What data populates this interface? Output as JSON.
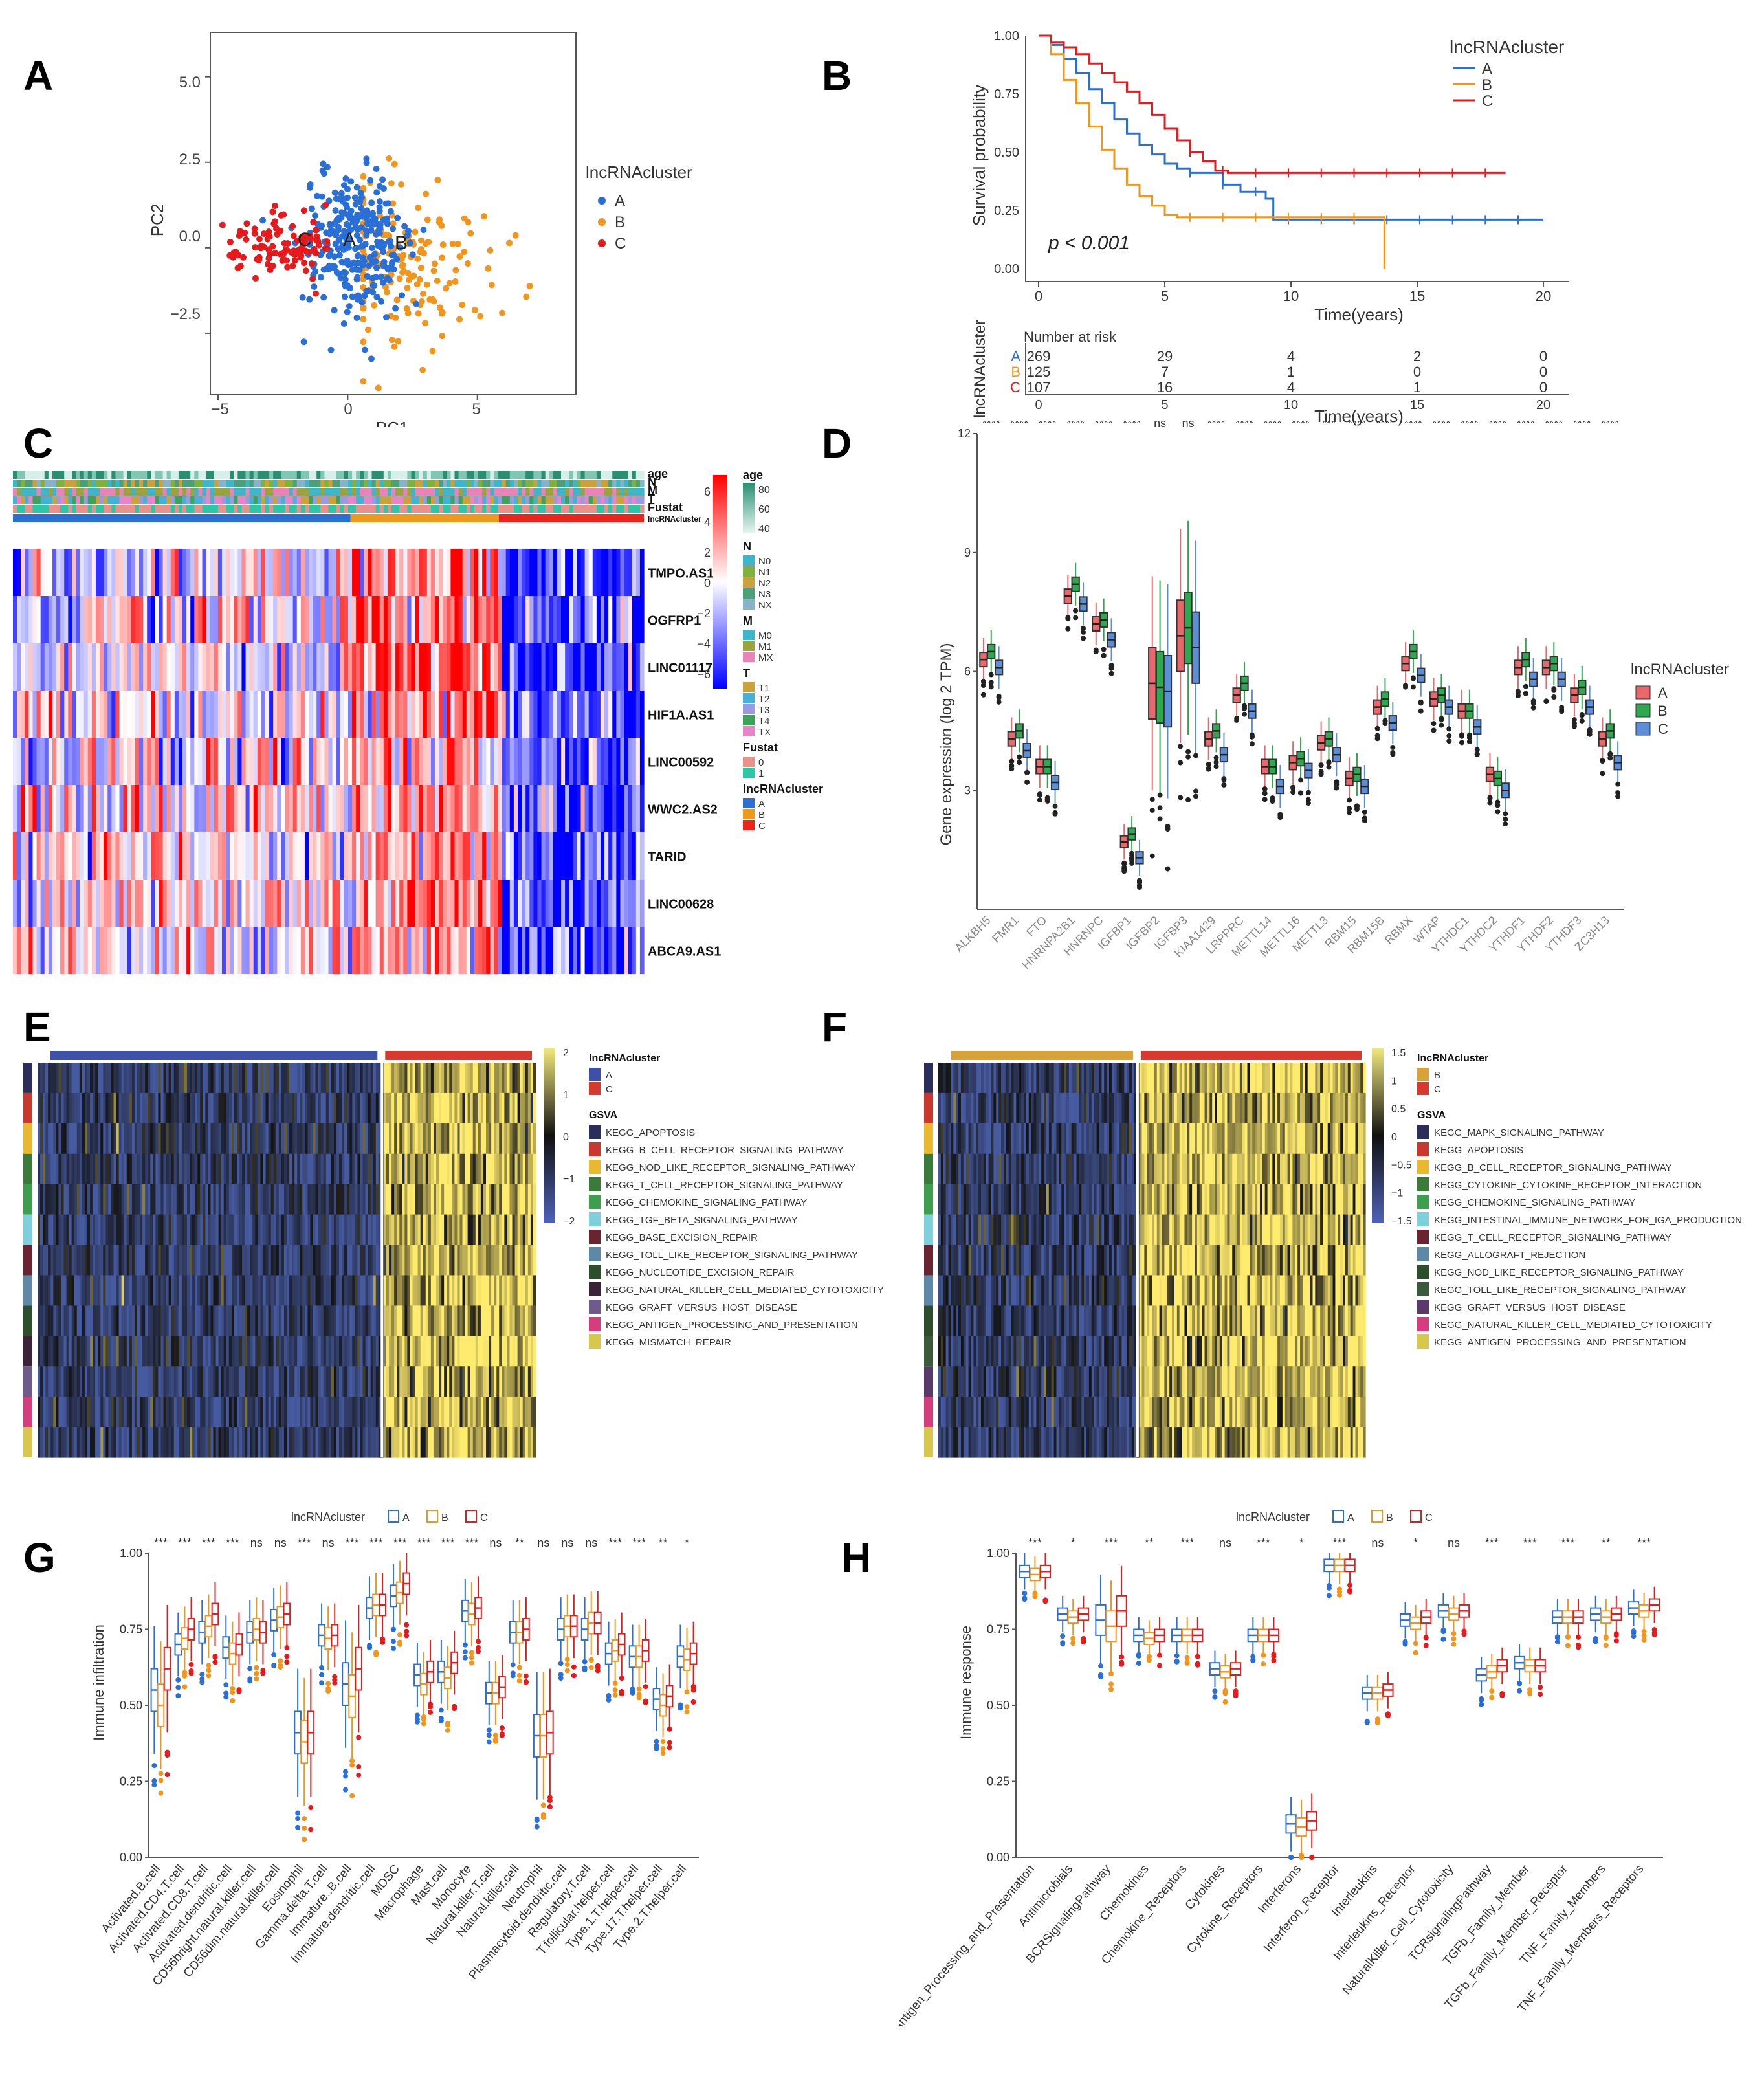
{
  "panels": {
    "A": {
      "letter": "A",
      "legend_title": "lncRNAcluster",
      "clusters": [
        "A",
        "B",
        "C"
      ],
      "colors": {
        "A": "#2a6fd6",
        "B": "#f0961e",
        "C": "#e41a1c"
      },
      "xlabel": "PC1",
      "ylabel": "PC2",
      "xticks": [
        "−5",
        "0",
        "5"
      ],
      "yticks": [
        "5.0",
        "2.5",
        "0.0",
        "−2.5"
      ]
    },
    "B": {
      "letter": "B",
      "legend_title": "lncRNAcluster",
      "ylabel": "Survival probability",
      "xlabel": "Time(years)",
      "pvalue": "p < 0.001",
      "yticks": [
        "1.00",
        "0.75",
        "0.50",
        "0.25",
        "0.00"
      ],
      "xticks": [
        "0",
        "5",
        "10",
        "15",
        "20"
      ],
      "risk_title": "Number at risk",
      "risk_ylabel": "lncRNAcluster",
      "risk_rows": [
        {
          "group": "A",
          "values": [
            "269",
            "29",
            "4",
            "2",
            "0"
          ]
        },
        {
          "group": "B",
          "values": [
            "125",
            "7",
            "1",
            "0",
            "0"
          ]
        },
        {
          "group": "C",
          "values": [
            "107",
            "16",
            "4",
            "1",
            "0"
          ]
        }
      ]
    },
    "C": {
      "letter": "C",
      "annotation_rows": [
        "age",
        "N",
        "M",
        "T",
        "Fustat",
        "lncRNAcluster"
      ],
      "genes": [
        "TMPO.AS1",
        "OGFRP1",
        "LINC01117",
        "HIF1A.AS1",
        "LINC00592",
        "WWC2.AS2",
        "TARID",
        "LINC00628",
        "ABCA9.AS1"
      ],
      "scale_ticks": [
        "6",
        "4",
        "2",
        "0",
        "−2",
        "−4",
        "−6"
      ],
      "legend": {
        "age": {
          "title": "age",
          "ticks": [
            "80",
            "60",
            "40"
          ]
        },
        "N": {
          "title": "N",
          "items": [
            "N0",
            "N1",
            "N2",
            "N3",
            "NX"
          ]
        },
        "M": {
          "title": "M",
          "items": [
            "M0",
            "M1",
            "MX"
          ]
        },
        "T": {
          "title": "T",
          "items": [
            "T1",
            "T2",
            "T3",
            "T4",
            "TX"
          ]
        },
        "Fustat": {
          "title": "Fustat",
          "items": [
            "0",
            "1"
          ]
        },
        "cluster": {
          "title": "lncRNAcluster",
          "items": [
            "A",
            "B",
            "C"
          ]
        }
      }
    },
    "D": {
      "letter": "D",
      "ylabel": "Gene expression (log 2 TPM)",
      "yticks": [
        "12",
        "9",
        "6",
        "3"
      ],
      "legend_title": "lncRNAcluster",
      "genes": [
        "ALKBH5",
        "FMR1",
        "FTO",
        "HNRNPA2B1",
        "HNRNPC",
        "IGFBP1",
        "IGFBP2",
        "IGFBP3",
        "KIAA1429",
        "LRPPRC",
        "METTL14",
        "METTL16",
        "METTL3",
        "RBM15",
        "RBM15B",
        "RBMX",
        "WTAP",
        "YTHDC1",
        "YTHDC2",
        "YTHDF1",
        "YTHDF2",
        "YTHDF3",
        "ZC3H13"
      ],
      "signif": [
        "****",
        "****",
        "****",
        "****",
        "****",
        "****",
        "ns",
        "ns",
        "****",
        "****",
        "****",
        "****",
        "***",
        "****",
        "****",
        "****",
        "****",
        "****",
        "****",
        "****",
        "****",
        "****",
        "****"
      ],
      "colors": {
        "A": "#e8696b",
        "B": "#2fa84f",
        "C": "#5b8fd8"
      }
    },
    "E": {
      "letter": "E",
      "legend_title": "lncRNAcluster",
      "clusters": [
        "A",
        "C"
      ],
      "gsva_title": "GSVA",
      "scale_ticks": [
        "2",
        "1",
        "0",
        "−1",
        "−2"
      ],
      "pathways": [
        "KEGG_APOPTOSIS",
        "KEGG_B_CELL_RECEPTOR_SIGNALING_PATHWAY",
        "KEGG_NOD_LIKE_RECEPTOR_SIGNALING_PATHWAY",
        "KEGG_T_CELL_RECEPTOR_SIGNALING_PATHWAY",
        "KEGG_CHEMOKINE_SIGNALING_PATHWAY",
        "KEGG_TGF_BETA_SIGNALING_PATHWAY",
        "KEGG_BASE_EXCISION_REPAIR",
        "KEGG_TOLL_LIKE_RECEPTOR_SIGNALING_PATHWAY",
        "KEGG_NUCLEOTIDE_EXCISION_REPAIR",
        "KEGG_NATURAL_KILLER_CELL_MEDIATED_CYTOTOXICITY",
        "KEGG_GRAFT_VERSUS_HOST_DISEASE",
        "KEGG_ANTIGEN_PROCESSING_AND_PRESENTATION",
        "KEGG_MISMATCH_REPAIR"
      ],
      "pathway_colors": [
        "#2b2d5a",
        "#c8382f",
        "#e8b92f",
        "#3a7a3a",
        "#3d9e4f",
        "#7fd0dd",
        "#6a2331",
        "#5f87a8",
        "#2a4f2a",
        "#3a2238",
        "#6f5a8c",
        "#d63d7f",
        "#d9c64d"
      ]
    },
    "F": {
      "letter": "F",
      "legend_title": "lncRNAcluster",
      "clusters": [
        "B",
        "C"
      ],
      "gsva_title": "GSVA",
      "scale_ticks": [
        "1.5",
        "1",
        "0.5",
        "0",
        "−0.5",
        "−1",
        "−1.5"
      ],
      "pathways": [
        "KEGG_MAPK_SIGNALING_PATHWAY",
        "KEGG_APOPTOSIS",
        "KEGG_B_CELL_RECEPTOR_SIGNALING_PATHWAY",
        "KEGG_CYTOKINE_CYTOKINE_RECEPTOR_INTERACTION",
        "KEGG_CHEMOKINE_SIGNALING_PATHWAY",
        "KEGG_INTESTINAL_IMMUNE_NETWORK_FOR_IGA_PRODUCTION",
        "KEGG_T_CELL_RECEPTOR_SIGNALING_PATHWAY",
        "KEGG_ALLOGRAFT_REJECTION",
        "KEGG_NOD_LIKE_RECEPTOR_SIGNALING_PATHWAY",
        "KEGG_TOLL_LIKE_RECEPTOR_SIGNALING_PATHWAY",
        "KEGG_GRAFT_VERSUS_HOST_DISEASE",
        "KEGG_NATURAL_KILLER_CELL_MEDIATED_CYTOTOXICITY",
        "KEGG_ANTIGEN_PROCESSING_AND_PRESENTATION"
      ],
      "pathway_colors": [
        "#2b2d5a",
        "#c8382f",
        "#e8b92f",
        "#3a7a3a",
        "#3d9e4f",
        "#7fd0dd",
        "#6a2331",
        "#5f87a8",
        "#2a4f2a",
        "#3a5a3a",
        "#5a3a6a",
        "#d63d7f",
        "#d9c64d"
      ]
    },
    "G": {
      "letter": "G",
      "legend_title": "lncRNAcluster",
      "ylabel": "Immune infiltration",
      "yticks": [
        "1.00",
        "0.75",
        "0.50",
        "0.25",
        "0.00"
      ],
      "cells": [
        "Activated.B.cell",
        "Activated.CD4.T.cell",
        "Activated.CD8.T.cell",
        "Activated.dendritic.cell",
        "CD56bright.natural.killer.cell",
        "CD56dim.natural.killer.cell",
        "Eosinophil",
        "Gamma.delta.T.cell",
        "Immature..B.cell",
        "Immature.dendritic.cell",
        "MDSC",
        "Macrophage",
        "Mast.cell",
        "Monocyte",
        "Natural.killer.T.cell",
        "Natural.killer.cell",
        "Neutrophil",
        "Plasmacytoid.dendritic.cell",
        "Regulatory.T.cell",
        "T.follicular.helper.cell",
        "Type.1.T.helper.cell",
        "Type.17.T.helper.cell",
        "Type.2.T.helper.cell"
      ],
      "signif": [
        "***",
        "***",
        "***",
        "***",
        "ns",
        "ns",
        "***",
        "ns",
        "***",
        "***",
        "***",
        "***",
        "***",
        "***",
        "ns",
        "**",
        "ns",
        "ns",
        "ns",
        "***",
        "***",
        "**",
        "*"
      ],
      "colors": {
        "A": "#2a6fd6",
        "B": "#f0961e",
        "C": "#e41a1c"
      }
    },
    "H": {
      "letter": "H",
      "legend_title": "lncRNAcluster",
      "ylabel": "Immune response",
      "yticks": [
        "1.00",
        "0.75",
        "0.50",
        "0.25",
        "0.00"
      ],
      "categories": [
        "Antigen_Processing_and_Presentation",
        "Antimicrobials",
        "BCRSignalingPathway",
        "Chemokines",
        "Chemokine_Receptors",
        "Cytokines",
        "Cytokine_Receptors",
        "Interferons",
        "Interferon_Receptor",
        "Interleukins",
        "Interleukins_Receptor",
        "NaturalKiller_Cell_Cytotoxicity",
        "TCRsignalingPathway",
        "TGFb_Family_Member",
        "TGFb_Family_Member_Receptor",
        "TNF_Family_Members",
        "TNF_Family_Members_Receptors"
      ],
      "signif": [
        "***",
        "*",
        "***",
        "**",
        "***",
        "ns",
        "***",
        "*",
        "***",
        "ns",
        "*",
        "ns",
        "***",
        "***",
        "***",
        "**",
        "***"
      ],
      "colors": {
        "A": "#2a6fd6",
        "B": "#f0961e",
        "C": "#e41a1c"
      }
    }
  },
  "chart_data": [
    {
      "type": "scatter",
      "panel": "A",
      "xlabel": "PC1",
      "ylabel": "PC2",
      "xlim": [
        -5.3,
        8.8
      ],
      "ylim": [
        -4.3,
        6.3
      ],
      "series": [
        {
          "name": "A",
          "center": [
            0,
            0
          ]
        },
        {
          "name": "B",
          "center": [
            2.2,
            -0.2
          ]
        },
        {
          "name": "C",
          "center": [
            -2.8,
            0.1
          ]
        }
      ]
    },
    {
      "type": "line",
      "panel": "B",
      "xlabel": "Time(years)",
      "ylabel": "Survival probability",
      "xlim": [
        0,
        20
      ],
      "ylim": [
        0,
        1
      ],
      "series": [
        {
          "name": "A",
          "points": [
            [
              0,
              1
            ],
            [
              0.5,
              0.96
            ],
            [
              1,
              0.9
            ],
            [
              1.5,
              0.84
            ],
            [
              2,
              0.77
            ],
            [
              2.5,
              0.71
            ],
            [
              3,
              0.64
            ],
            [
              3.5,
              0.58
            ],
            [
              4,
              0.53
            ],
            [
              4.5,
              0.49
            ],
            [
              5,
              0.45
            ],
            [
              5.5,
              0.43
            ],
            [
              6,
              0.41
            ],
            [
              7,
              0.41
            ],
            [
              7.3,
              0.36
            ],
            [
              8,
              0.33
            ],
            [
              9,
              0.3
            ],
            [
              9.3,
              0.21
            ],
            [
              15,
              0.21
            ],
            [
              20,
              0.21
            ]
          ]
        },
        {
          "name": "B",
          "points": [
            [
              0,
              1
            ],
            [
              0.5,
              0.92
            ],
            [
              1,
              0.81
            ],
            [
              1.5,
              0.71
            ],
            [
              2,
              0.61
            ],
            [
              2.5,
              0.51
            ],
            [
              3,
              0.43
            ],
            [
              3.5,
              0.36
            ],
            [
              4,
              0.31
            ],
            [
              4.5,
              0.27
            ],
            [
              5,
              0.23
            ],
            [
              5.5,
              0.22
            ],
            [
              13.7,
              0.22
            ],
            [
              13.7,
              0
            ]
          ]
        },
        {
          "name": "C",
          "points": [
            [
              0,
              1
            ],
            [
              0.5,
              0.97
            ],
            [
              1,
              0.95
            ],
            [
              1.5,
              0.92
            ],
            [
              2,
              0.88
            ],
            [
              2.5,
              0.84
            ],
            [
              3,
              0.8
            ],
            [
              3.5,
              0.76
            ],
            [
              4,
              0.71
            ],
            [
              4.5,
              0.66
            ],
            [
              5,
              0.6
            ],
            [
              5.5,
              0.55
            ],
            [
              6,
              0.5
            ],
            [
              6.5,
              0.46
            ],
            [
              7,
              0.42
            ],
            [
              7.5,
              0.41
            ],
            [
              18.5,
              0.41
            ]
          ]
        }
      ]
    },
    {
      "type": "heatmap",
      "panel": "C",
      "rows": [
        "TMPO.AS1",
        "OGFRP1",
        "LINC01117",
        "HIF1A.AS1",
        "LINC00592",
        "WWC2.AS2",
        "TARID",
        "LINC00628",
        "ABCA9.AS1"
      ],
      "groups": [
        "A",
        "B",
        "C"
      ],
      "range": [
        -6,
        6
      ]
    },
    {
      "type": "bar",
      "panel": "D",
      "ylabel": "Gene expression (log 2 TPM)",
      "ylim": [
        0,
        12
      ],
      "categories": [
        "ALKBH5",
        "FMR1",
        "FTO",
        "HNRNPA2B1",
        "HNRNPC",
        "IGFBP1",
        "IGFBP2",
        "IGFBP3",
        "KIAA1429",
        "LRPPRC",
        "METTL14",
        "METTL16",
        "METTL3",
        "RBM15",
        "RBM15B",
        "RBMX",
        "WTAP",
        "YTHDC1",
        "YTHDC2",
        "YTHDF1",
        "YTHDF2",
        "YTHDF3",
        "ZC3H13"
      ],
      "series": [
        {
          "name": "A",
          "values": [
            6.3,
            4.3,
            3.6,
            7.9,
            7.2,
            1.7,
            5.7,
            6.9,
            4.3,
            5.4,
            3.6,
            3.7,
            4.2,
            3.3,
            5.1,
            6.2,
            5.3,
            5.0,
            3.4,
            6.1,
            6.1,
            5.4,
            4.3
          ]
        },
        {
          "name": "B",
          "values": [
            6.5,
            4.5,
            3.6,
            8.2,
            7.3,
            1.9,
            5.6,
            7.1,
            4.5,
            5.7,
            3.6,
            3.8,
            4.3,
            3.4,
            5.3,
            6.5,
            5.4,
            5.0,
            3.3,
            6.3,
            6.2,
            5.6,
            4.5
          ]
        },
        {
          "name": "C",
          "values": [
            6.1,
            4.0,
            3.2,
            7.7,
            6.8,
            1.3,
            5.5,
            6.6,
            3.9,
            5.0,
            3.1,
            3.5,
            3.9,
            3.1,
            4.7,
            5.9,
            5.1,
            4.6,
            3.0,
            5.8,
            5.8,
            5.1,
            3.7
          ]
        }
      ]
    },
    {
      "type": "heatmap",
      "panel": "E",
      "groups": [
        "A",
        "C"
      ],
      "range": [
        -2,
        2
      ]
    },
    {
      "type": "heatmap",
      "panel": "F",
      "groups": [
        "B",
        "C"
      ],
      "range": [
        -1.5,
        1.5
      ]
    },
    {
      "type": "bar",
      "panel": "G",
      "ylabel": "Immune infiltration",
      "ylim": [
        0,
        1
      ],
      "series": [
        {
          "name": "A",
          "values": [
            0.55,
            0.7,
            0.74,
            0.69,
            0.74,
            0.78,
            0.41,
            0.73,
            0.57,
            0.82,
            0.86,
            0.6,
            0.61,
            0.81,
            0.54,
            0.74,
            0.4,
            0.75,
            0.75,
            0.67,
            0.66,
            0.52,
            0.66
          ]
        },
        {
          "name": "B",
          "values": [
            0.5,
            0.72,
            0.76,
            0.67,
            0.75,
            0.79,
            0.38,
            0.72,
            0.53,
            0.83,
            0.87,
            0.57,
            0.59,
            0.8,
            0.54,
            0.74,
            0.4,
            0.76,
            0.77,
            0.68,
            0.66,
            0.5,
            0.65
          ]
        },
        {
          "name": "C",
          "values": [
            0.62,
            0.75,
            0.8,
            0.7,
            0.74,
            0.8,
            0.41,
            0.73,
            0.62,
            0.83,
            0.9,
            0.61,
            0.64,
            0.82,
            0.56,
            0.75,
            0.41,
            0.76,
            0.77,
            0.7,
            0.68,
            0.53,
            0.67
          ]
        }
      ]
    },
    {
      "type": "bar",
      "panel": "H",
      "ylabel": "Immune response",
      "ylim": [
        0,
        1
      ],
      "series": [
        {
          "name": "A",
          "values": [
            0.94,
            0.8,
            0.78,
            0.73,
            0.73,
            0.62,
            0.73,
            0.11,
            0.96,
            0.54,
            0.78,
            0.81,
            0.6,
            0.64,
            0.79,
            0.8,
            0.82
          ]
        },
        {
          "name": "B",
          "values": [
            0.93,
            0.79,
            0.76,
            0.72,
            0.73,
            0.61,
            0.73,
            0.1,
            0.96,
            0.54,
            0.77,
            0.8,
            0.61,
            0.63,
            0.79,
            0.79,
            0.81
          ]
        },
        {
          "name": "C",
          "values": [
            0.94,
            0.8,
            0.81,
            0.73,
            0.73,
            0.62,
            0.73,
            0.12,
            0.96,
            0.55,
            0.79,
            0.81,
            0.63,
            0.63,
            0.79,
            0.8,
            0.83
          ]
        }
      ]
    }
  ]
}
